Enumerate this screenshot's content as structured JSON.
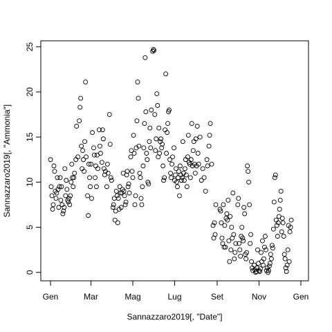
{
  "chart_data": {
    "type": "scatter",
    "title": "",
    "xlabel": "Sannazzaro2019[, \"Date\"]",
    "ylabel": "Sannazzaro2019[, \"Ammonia\"]",
    "x_type": "date",
    "xlim": [
      "2019-01-01",
      "2020-01-01"
    ],
    "ylim": [
      0,
      25
    ],
    "x_ticks": [
      {
        "value": "2019-01-01",
        "label": "Gen"
      },
      {
        "value": "2019-03-01",
        "label": "Mar"
      },
      {
        "value": "2019-05-01",
        "label": "Mag"
      },
      {
        "value": "2019-07-01",
        "label": "Lug"
      },
      {
        "value": "2019-09-01",
        "label": "Set"
      },
      {
        "value": "2019-11-01",
        "label": "Nov"
      },
      {
        "value": "2020-01-01",
        "label": "Gen"
      }
    ],
    "y_ticks": [
      0,
      5,
      10,
      15,
      20,
      25
    ],
    "grid": false,
    "marker": "open-circle",
    "points": [
      [
        "2019-01-01",
        12.5
      ],
      [
        "2019-01-02",
        9.5
      ],
      [
        "2019-01-03",
        8.5
      ],
      [
        "2019-01-04",
        7.0
      ],
      [
        "2019-01-05",
        7.5
      ],
      [
        "2019-01-06",
        11.8
      ],
      [
        "2019-01-07",
        11.2
      ],
      [
        "2019-01-08",
        9.0
      ],
      [
        "2019-01-09",
        8.2
      ],
      [
        "2019-01-10",
        8.8
      ],
      [
        "2019-01-11",
        10.5
      ],
      [
        "2019-01-12",
        9.2
      ],
      [
        "2019-01-13",
        7.2
      ],
      [
        "2019-01-14",
        9.5
      ],
      [
        "2019-01-15",
        10.5
      ],
      [
        "2019-01-16",
        8.0
      ],
      [
        "2019-01-17",
        9.5
      ],
      [
        "2019-01-18",
        7.5
      ],
      [
        "2019-01-19",
        6.5
      ],
      [
        "2019-01-20",
        6.8
      ],
      [
        "2019-01-21",
        7.2
      ],
      [
        "2019-01-22",
        11.5
      ],
      [
        "2019-01-23",
        8.5
      ],
      [
        "2019-01-24",
        10.2
      ],
      [
        "2019-01-25",
        9.2
      ],
      [
        "2019-01-26",
        8.0
      ],
      [
        "2019-01-27",
        7.8
      ],
      [
        "2019-01-28",
        8.2
      ],
      [
        "2019-01-29",
        7.5
      ],
      [
        "2019-01-30",
        8.5
      ],
      [
        "2019-01-31",
        10.0
      ],
      [
        "2019-02-01",
        12.0
      ],
      [
        "2019-02-02",
        10.5
      ],
      [
        "2019-02-03",
        9.5
      ],
      [
        "2019-02-04",
        10.5
      ],
      [
        "2019-02-05",
        11.0
      ],
      [
        "2019-02-07",
        12.5
      ],
      [
        "2019-02-08",
        16.2
      ],
      [
        "2019-02-10",
        12.8
      ],
      [
        "2019-02-12",
        16.8
      ],
      [
        "2019-02-13",
        18.3
      ],
      [
        "2019-02-14",
        19.3
      ],
      [
        "2019-02-15",
        14.0
      ],
      [
        "2019-02-16",
        11.5
      ],
      [
        "2019-02-17",
        13.5
      ],
      [
        "2019-02-18",
        12.5
      ],
      [
        "2019-02-19",
        11.2
      ],
      [
        "2019-02-20",
        14.5
      ],
      [
        "2019-02-21",
        21.1
      ],
      [
        "2019-02-22",
        12.8
      ],
      [
        "2019-02-24",
        8.5
      ],
      [
        "2019-02-25",
        6.3
      ],
      [
        "2019-02-26",
        12.0
      ],
      [
        "2019-02-27",
        10.5
      ],
      [
        "2019-02-28",
        9.5
      ],
      [
        "2019-03-01",
        12.0
      ],
      [
        "2019-03-02",
        8.2
      ],
      [
        "2019-03-03",
        15.5
      ],
      [
        "2019-03-05",
        13.8
      ],
      [
        "2019-03-06",
        13.0
      ],
      [
        "2019-03-07",
        10.5
      ],
      [
        "2019-03-08",
        11.8
      ],
      [
        "2019-03-09",
        9.5
      ],
      [
        "2019-03-10",
        13.0
      ],
      [
        "2019-03-11",
        11.5
      ],
      [
        "2019-03-13",
        15.8
      ],
      [
        "2019-03-14",
        14.0
      ],
      [
        "2019-03-15",
        13.2
      ],
      [
        "2019-03-17",
        12.2
      ],
      [
        "2019-03-18",
        15.8
      ],
      [
        "2019-03-19",
        14.8
      ],
      [
        "2019-03-20",
        11.5
      ],
      [
        "2019-03-21",
        10.8
      ],
      [
        "2019-03-22",
        11.2
      ],
      [
        "2019-03-24",
        9.5
      ],
      [
        "2019-03-25",
        12.0
      ],
      [
        "2019-03-26",
        11.0
      ],
      [
        "2019-03-28",
        17.5
      ],
      [
        "2019-03-29",
        14.2
      ],
      [
        "2019-03-30",
        10.5
      ],
      [
        "2019-03-31",
        10.2
      ],
      [
        "2019-04-02",
        7.2
      ],
      [
        "2019-04-03",
        7.5
      ],
      [
        "2019-04-04",
        8.2
      ],
      [
        "2019-04-05",
        5.8
      ],
      [
        "2019-04-06",
        6.8
      ],
      [
        "2019-04-07",
        9.0
      ],
      [
        "2019-04-08",
        8.5
      ],
      [
        "2019-04-09",
        5.5
      ],
      [
        "2019-04-10",
        8.2
      ],
      [
        "2019-04-11",
        7.0
      ],
      [
        "2019-04-12",
        9.5
      ],
      [
        "2019-04-13",
        8.8
      ],
      [
        "2019-04-14",
        7.2
      ],
      [
        "2019-04-15",
        8.8
      ],
      [
        "2019-04-16",
        9.2
      ],
      [
        "2019-04-17",
        11.0
      ],
      [
        "2019-04-18",
        9.0
      ],
      [
        "2019-04-19",
        8.5
      ],
      [
        "2019-04-20",
        7.5
      ],
      [
        "2019-04-21",
        7.8
      ],
      [
        "2019-04-22",
        10.8
      ],
      [
        "2019-04-23",
        11.2
      ],
      [
        "2019-04-24",
        9.5
      ],
      [
        "2019-04-25",
        9.8
      ],
      [
        "2019-04-26",
        8.8
      ],
      [
        "2019-04-28",
        12.8
      ],
      [
        "2019-04-29",
        13.5
      ],
      [
        "2019-04-30",
        11.2
      ],
      [
        "2019-05-01",
        10.5
      ],
      [
        "2019-05-02",
        15.2
      ],
      [
        "2019-05-03",
        13.2
      ],
      [
        "2019-05-04",
        7.5
      ],
      [
        "2019-05-05",
        8.5
      ],
      [
        "2019-05-06",
        13.8
      ],
      [
        "2019-05-07",
        16.8
      ],
      [
        "2019-05-08",
        21.1
      ],
      [
        "2019-05-09",
        19.3
      ],
      [
        "2019-05-10",
        14.0
      ],
      [
        "2019-05-11",
        11.0
      ],
      [
        "2019-05-12",
        10.5
      ],
      [
        "2019-05-13",
        8.2
      ],
      [
        "2019-05-14",
        7.5
      ],
      [
        "2019-05-15",
        9.5
      ],
      [
        "2019-05-16",
        11.8
      ],
      [
        "2019-05-17",
        13.8
      ],
      [
        "2019-05-18",
        16.5
      ],
      [
        "2019-05-19",
        23.8
      ],
      [
        "2019-05-20",
        17.8
      ],
      [
        "2019-05-21",
        13.2
      ],
      [
        "2019-05-22",
        12.5
      ],
      [
        "2019-05-23",
        10.0
      ],
      [
        "2019-05-24",
        9.8
      ],
      [
        "2019-05-25",
        14.5
      ],
      [
        "2019-05-26",
        16.0
      ],
      [
        "2019-05-27",
        13.8
      ],
      [
        "2019-05-28",
        18.0
      ],
      [
        "2019-05-30",
        24.5
      ],
      [
        "2019-05-31",
        24.7
      ],
      [
        "2019-06-01",
        24.6
      ],
      [
        "2019-06-02",
        17.5
      ],
      [
        "2019-06-03",
        13.5
      ],
      [
        "2019-06-04",
        14.8
      ],
      [
        "2019-06-05",
        19.8
      ],
      [
        "2019-06-06",
        18.5
      ],
      [
        "2019-06-07",
        12.8
      ],
      [
        "2019-06-08",
        16.0
      ],
      [
        "2019-06-09",
        13.2
      ],
      [
        "2019-06-10",
        14.5
      ],
      [
        "2019-06-11",
        14.8
      ],
      [
        "2019-06-12",
        13.8
      ],
      [
        "2019-06-13",
        14.2
      ],
      [
        "2019-06-14",
        11.8
      ],
      [
        "2019-06-15",
        10.2
      ],
      [
        "2019-06-16",
        10.5
      ],
      [
        "2019-06-17",
        15.8
      ],
      [
        "2019-06-18",
        22.0
      ],
      [
        "2019-06-19",
        13.2
      ],
      [
        "2019-06-20",
        15.5
      ],
      [
        "2019-06-21",
        16.5
      ],
      [
        "2019-06-22",
        17.8
      ],
      [
        "2019-06-23",
        18.0
      ],
      [
        "2019-06-24",
        12.5
      ],
      [
        "2019-06-25",
        11.0
      ],
      [
        "2019-06-26",
        10.5
      ],
      [
        "2019-06-27",
        12.0
      ],
      [
        "2019-06-28",
        12.8
      ],
      [
        "2019-06-30",
        13.8
      ],
      [
        "2019-07-01",
        10.2
      ],
      [
        "2019-07-02",
        10.8
      ],
      [
        "2019-07-03",
        11.5
      ],
      [
        "2019-07-04",
        10.0
      ],
      [
        "2019-07-05",
        9.5
      ],
      [
        "2019-07-06",
        10.5
      ],
      [
        "2019-07-07",
        11.2
      ],
      [
        "2019-07-08",
        8.5
      ],
      [
        "2019-07-09",
        11.8
      ],
      [
        "2019-07-10",
        10.8
      ],
      [
        "2019-07-11",
        10.2
      ],
      [
        "2019-07-12",
        10.5
      ],
      [
        "2019-07-13",
        14.5
      ],
      [
        "2019-07-14",
        11.0
      ],
      [
        "2019-07-15",
        10.2
      ],
      [
        "2019-07-16",
        11.5
      ],
      [
        "2019-07-17",
        12.5
      ],
      [
        "2019-07-18",
        10.8
      ],
      [
        "2019-07-19",
        9.5
      ],
      [
        "2019-07-20",
        12.8
      ],
      [
        "2019-07-21",
        15.2
      ],
      [
        "2019-07-22",
        12.2
      ],
      [
        "2019-07-23",
        12.0
      ],
      [
        "2019-07-24",
        10.5
      ],
      [
        "2019-07-25",
        12.5
      ],
      [
        "2019-07-26",
        16.5
      ],
      [
        "2019-07-27",
        11.8
      ],
      [
        "2019-07-28",
        13.5
      ],
      [
        "2019-07-29",
        14.5
      ],
      [
        "2019-07-30",
        12.0
      ],
      [
        "2019-07-31",
        11.0
      ],
      [
        "2019-08-01",
        14.8
      ],
      [
        "2019-08-02",
        11.8
      ],
      [
        "2019-08-03",
        16.2
      ],
      [
        "2019-08-04",
        13.2
      ],
      [
        "2019-08-05",
        12.0
      ],
      [
        "2019-08-07",
        15.0
      ],
      [
        "2019-08-09",
        10.2
      ],
      [
        "2019-08-11",
        11.5
      ],
      [
        "2019-08-13",
        10.5
      ],
      [
        "2019-08-15",
        9.0
      ],
      [
        "2019-08-17",
        12.5
      ],
      [
        "2019-08-18",
        11.8
      ],
      [
        "2019-08-20",
        14.0
      ],
      [
        "2019-08-21",
        15.2
      ],
      [
        "2019-08-22",
        16.5
      ],
      [
        "2019-08-24",
        12.0
      ],
      [
        "2019-08-26",
        5.2
      ],
      [
        "2019-08-27",
        3.8
      ],
      [
        "2019-08-28",
        5.5
      ],
      [
        "2019-08-29",
        4.2
      ],
      [
        "2019-08-30",
        7.5
      ],
      [
        "2019-09-05",
        7.0
      ],
      [
        "2019-09-06",
        6.8
      ],
      [
        "2019-09-07",
        5.5
      ],
      [
        "2019-09-08",
        3.8
      ],
      [
        "2019-09-09",
        3.2
      ],
      [
        "2019-09-10",
        7.5
      ],
      [
        "2019-09-11",
        2.8
      ],
      [
        "2019-09-12",
        5.2
      ],
      [
        "2019-09-13",
        2.8
      ],
      [
        "2019-09-14",
        6.0
      ],
      [
        "2019-09-15",
        6.5
      ],
      [
        "2019-09-16",
        5.8
      ],
      [
        "2019-09-17",
        8.0
      ],
      [
        "2019-09-18",
        3.5
      ],
      [
        "2019-09-19",
        1.2
      ],
      [
        "2019-09-20",
        6.2
      ],
      [
        "2019-09-21",
        2.5
      ],
      [
        "2019-09-22",
        5.0
      ],
      [
        "2019-09-23",
        3.8
      ],
      [
        "2019-09-24",
        8.8
      ],
      [
        "2019-09-25",
        4.2
      ],
      [
        "2019-09-26",
        1.5
      ],
      [
        "2019-09-27",
        2.2
      ],
      [
        "2019-09-28",
        3.2
      ],
      [
        "2019-10-01",
        7.5
      ],
      [
        "2019-10-02",
        8.2
      ],
      [
        "2019-10-03",
        3.2
      ],
      [
        "2019-10-04",
        2.5
      ],
      [
        "2019-10-05",
        1.8
      ],
      [
        "2019-10-06",
        4.0
      ],
      [
        "2019-10-07",
        5.0
      ],
      [
        "2019-10-08",
        3.8
      ],
      [
        "2019-10-09",
        3.5
      ],
      [
        "2019-10-10",
        7.2
      ],
      [
        "2019-10-11",
        6.5
      ],
      [
        "2019-10-12",
        2.0
      ],
      [
        "2019-10-13",
        1.5
      ],
      [
        "2019-10-14",
        2.2
      ],
      [
        "2019-10-15",
        11.8
      ],
      [
        "2019-10-16",
        11.2
      ],
      [
        "2019-10-17",
        10.0
      ],
      [
        "2019-10-18",
        7.5
      ],
      [
        "2019-10-19",
        3.2
      ],
      [
        "2019-10-20",
        4.2
      ],
      [
        "2019-10-21",
        1.2
      ],
      [
        "2019-10-22",
        0.5
      ],
      [
        "2019-10-23",
        0.2
      ],
      [
        "2019-10-25",
        0.8
      ],
      [
        "2019-10-26",
        0.3
      ],
      [
        "2019-10-27",
        0.0
      ],
      [
        "2019-10-28",
        0.1
      ],
      [
        "2019-10-29",
        0.5
      ],
      [
        "2019-10-30",
        2.5
      ],
      [
        "2019-10-31",
        1.0
      ],
      [
        "2019-11-01",
        0.2
      ],
      [
        "2019-11-02",
        0.1
      ],
      [
        "2019-11-03",
        0.4
      ],
      [
        "2019-11-04",
        2.2
      ],
      [
        "2019-11-05",
        1.2
      ],
      [
        "2019-11-06",
        3.5
      ],
      [
        "2019-11-07",
        0.8
      ],
      [
        "2019-11-08",
        1.5
      ],
      [
        "2019-11-09",
        2.8
      ],
      [
        "2019-11-10",
        4.0
      ],
      [
        "2019-11-11",
        2.5
      ],
      [
        "2019-11-12",
        0.2
      ],
      [
        "2019-11-13",
        0.5
      ],
      [
        "2019-11-14",
        0.0
      ],
      [
        "2019-11-15",
        0.2
      ],
      [
        "2019-11-16",
        0.7
      ],
      [
        "2019-11-17",
        1.0
      ],
      [
        "2019-11-18",
        2.0
      ],
      [
        "2019-11-19",
        1.5
      ],
      [
        "2019-11-20",
        3.0
      ],
      [
        "2019-11-21",
        2.7
      ],
      [
        "2019-11-22",
        4.8
      ],
      [
        "2019-11-23",
        7.8
      ],
      [
        "2019-11-24",
        10.5
      ],
      [
        "2019-11-25",
        10.8
      ],
      [
        "2019-11-26",
        5.8
      ],
      [
        "2019-11-27",
        5.2
      ],
      [
        "2019-11-28",
        4.0
      ],
      [
        "2019-11-29",
        5.5
      ],
      [
        "2019-11-30",
        6.2
      ],
      [
        "2019-12-01",
        7.0
      ],
      [
        "2019-12-02",
        8.0
      ],
      [
        "2019-12-03",
        9.0
      ],
      [
        "2019-12-04",
        4.5
      ],
      [
        "2019-12-05",
        6.0
      ],
      [
        "2019-12-06",
        5.5
      ],
      [
        "2019-12-07",
        4.0
      ],
      [
        "2019-12-08",
        2.0
      ],
      [
        "2019-12-09",
        1.5
      ],
      [
        "2019-12-10",
        0.5
      ],
      [
        "2019-12-11",
        0.1
      ],
      [
        "2019-12-12",
        0.8
      ],
      [
        "2019-12-13",
        2.5
      ],
      [
        "2019-12-14",
        5.2
      ],
      [
        "2019-12-15",
        1.2
      ],
      [
        "2019-12-16",
        4.5
      ],
      [
        "2019-12-17",
        5.0
      ],
      [
        "2019-12-18",
        5.8
      ]
    ]
  }
}
